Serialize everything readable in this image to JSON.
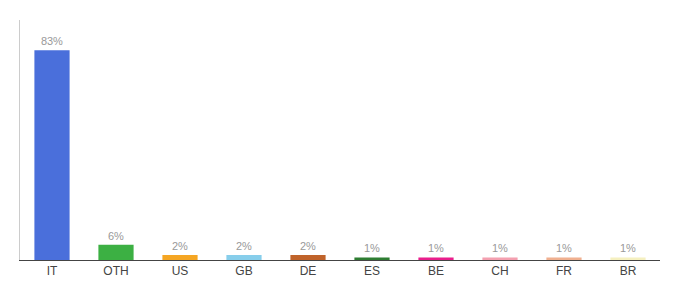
{
  "chart_data": {
    "type": "bar",
    "categories": [
      "IT",
      "OTH",
      "US",
      "GB",
      "DE",
      "ES",
      "BE",
      "CH",
      "FR",
      "BR"
    ],
    "values": [
      83,
      6,
      2,
      2,
      2,
      1,
      1,
      1,
      1,
      1
    ],
    "value_labels": [
      "83%",
      "6%",
      "2%",
      "2%",
      "2%",
      "1%",
      "1%",
      "1%",
      "1%",
      "1%"
    ],
    "colors": [
      "#4a6fdb",
      "#3cb043",
      "#f5a623",
      "#87ceeb",
      "#c0632a",
      "#2e7d32",
      "#e91e8c",
      "#f4a0b0",
      "#f0b090",
      "#f5f0c0"
    ],
    "ylim": [
      0,
      95
    ],
    "data_labels": true,
    "tick_labels": "x",
    "grid": false
  }
}
